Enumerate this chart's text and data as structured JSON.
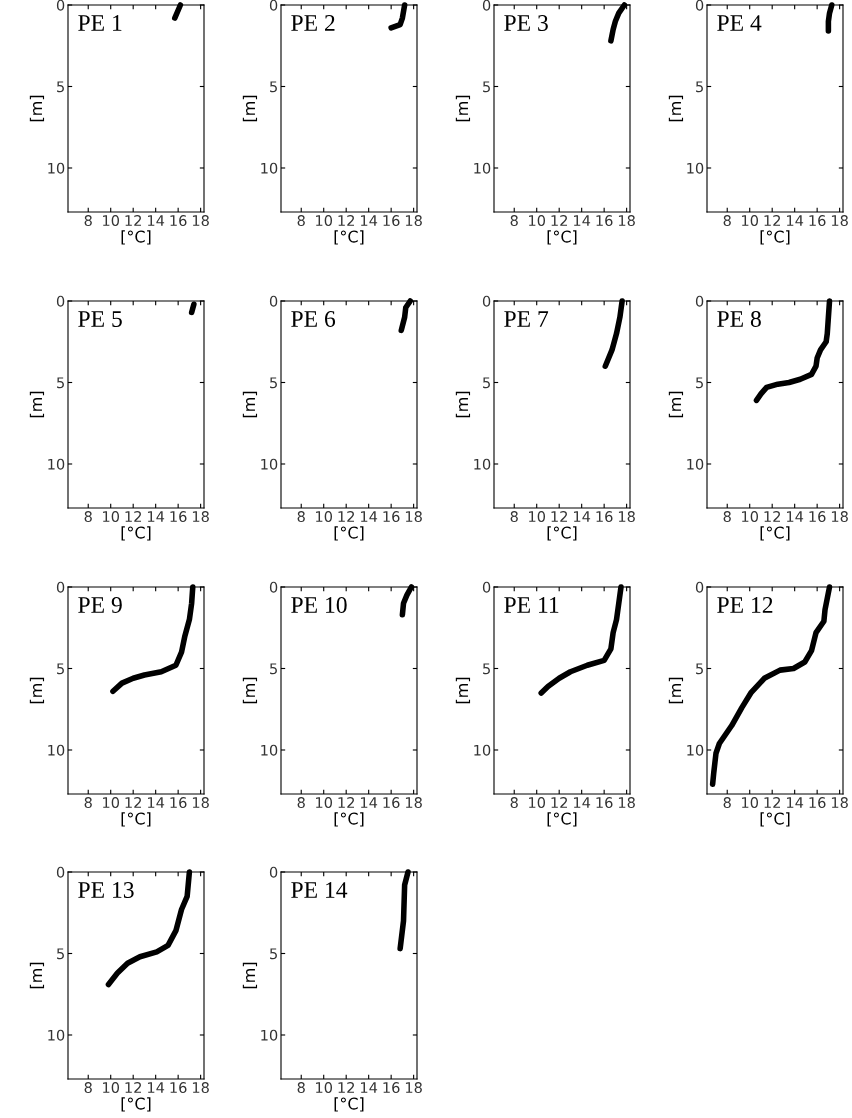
{
  "chart_data": [
    {
      "type": "line",
      "title": "PE 1",
      "xlabel": "[°C]",
      "ylabel": "[m]",
      "xlim": [
        6.2,
        18.3
      ],
      "ylim": [
        12.7,
        0
      ],
      "xticks": [
        8,
        10,
        12,
        14,
        16,
        18
      ],
      "yticks": [
        0,
        5,
        10
      ],
      "grid": false,
      "legend": false,
      "line_style": "solid",
      "series": [
        {
          "color": "#000000",
          "x": [
            16.2,
            15.7
          ],
          "values": [
            0,
            0.8
          ]
        }
      ]
    },
    {
      "type": "line",
      "title": "PE 2",
      "xlabel": "[°C]",
      "ylabel": "[m]",
      "xlim": [
        6.2,
        18.3
      ],
      "ylim": [
        12.7,
        0
      ],
      "xticks": [
        8,
        10,
        12,
        14,
        16,
        18
      ],
      "yticks": [
        0,
        5,
        10
      ],
      "grid": false,
      "legend": false,
      "line_style": "solid",
      "series": [
        {
          "color": "#000000",
          "x": [
            17.2,
            17.0,
            16.8,
            16.0
          ],
          "values": [
            0,
            0.8,
            1.2,
            1.4
          ]
        }
      ]
    },
    {
      "type": "line",
      "title": "PE 3",
      "xlabel": "[°C]",
      "ylabel": "[m]",
      "xlim": [
        6.2,
        18.3
      ],
      "ylim": [
        12.7,
        0
      ],
      "xticks": [
        8,
        10,
        12,
        14,
        16,
        18
      ],
      "yticks": [
        0,
        5,
        10
      ],
      "grid": false,
      "legend": false,
      "line_style": "solid",
      "series": [
        {
          "color": "#000000",
          "x": [
            17.8,
            17.3,
            17.0,
            16.8,
            16.6
          ],
          "values": [
            0,
            0.5,
            1.0,
            1.5,
            2.2
          ]
        }
      ]
    },
    {
      "type": "line",
      "title": "PE 4",
      "xlabel": "[°C]",
      "ylabel": "[m]",
      "xlim": [
        6.2,
        18.3
      ],
      "ylim": [
        12.7,
        0
      ],
      "xticks": [
        8,
        10,
        12,
        14,
        16,
        18
      ],
      "yticks": [
        0,
        5,
        10
      ],
      "grid": false,
      "legend": false,
      "line_style": "solid",
      "series": [
        {
          "color": "#000000",
          "x": [
            17.3,
            17.1,
            17.0,
            17.0
          ],
          "values": [
            0,
            0.5,
            1.0,
            1.6
          ]
        }
      ]
    },
    {
      "type": "line",
      "title": "PE 5",
      "xlabel": "[°C]",
      "ylabel": "[m]",
      "xlim": [
        6.2,
        18.3
      ],
      "ylim": [
        12.7,
        0
      ],
      "xticks": [
        8,
        10,
        12,
        14,
        16,
        18
      ],
      "yticks": [
        0,
        5,
        10
      ],
      "grid": false,
      "legend": false,
      "line_style": "solid",
      "series": [
        {
          "color": "#000000",
          "x": [
            17.4,
            17.2
          ],
          "values": [
            0.2,
            0.7
          ]
        }
      ]
    },
    {
      "type": "line",
      "title": "PE 6",
      "xlabel": "[°C]",
      "ylabel": "[m]",
      "xlim": [
        6.2,
        18.3
      ],
      "ylim": [
        12.7,
        0
      ],
      "xticks": [
        8,
        10,
        12,
        14,
        16,
        18
      ],
      "yticks": [
        0,
        5,
        10
      ],
      "grid": false,
      "legend": false,
      "line_style": "solid",
      "series": [
        {
          "color": "#000000",
          "x": [
            17.7,
            17.3,
            17.2,
            16.9
          ],
          "values": [
            0,
            0.4,
            1.0,
            1.8
          ]
        }
      ]
    },
    {
      "type": "line",
      "title": "PE 7",
      "xlabel": "[°C]",
      "ylabel": "[m]",
      "xlim": [
        6.2,
        18.3
      ],
      "ylim": [
        12.7,
        0
      ],
      "xticks": [
        8,
        10,
        12,
        14,
        16,
        18
      ],
      "yticks": [
        0,
        5,
        10
      ],
      "grid": false,
      "legend": false,
      "line_style": "solid",
      "series": [
        {
          "color": "#000000",
          "x": [
            17.6,
            17.4,
            17.1,
            16.7,
            16.1
          ],
          "values": [
            0,
            1,
            2,
            3,
            4
          ]
        }
      ]
    },
    {
      "type": "line",
      "title": "PE 8",
      "xlabel": "[°C]",
      "ylabel": "[m]",
      "xlim": [
        6.2,
        18.3
      ],
      "ylim": [
        12.7,
        0
      ],
      "xticks": [
        8,
        10,
        12,
        14,
        16,
        18
      ],
      "yticks": [
        0,
        5,
        10
      ],
      "grid": false,
      "legend": false,
      "line_style": "solid",
      "series": [
        {
          "color": "#000000",
          "x": [
            17.1,
            17.0,
            16.9,
            16.8,
            16.3,
            16.0,
            15.9,
            15.5,
            14.5,
            13.5,
            12.5,
            11.5,
            11.0,
            10.6
          ],
          "values": [
            0,
            1,
            2,
            2.5,
            3,
            3.5,
            4,
            4.5,
            4.8,
            5.0,
            5.1,
            5.3,
            5.7,
            6.1
          ]
        }
      ]
    },
    {
      "type": "line",
      "title": "PE 9",
      "xlabel": "[°C]",
      "ylabel": "[m]",
      "xlim": [
        6.2,
        18.3
      ],
      "ylim": [
        12.7,
        0
      ],
      "xticks": [
        8,
        10,
        12,
        14,
        16,
        18
      ],
      "yticks": [
        0,
        5,
        10
      ],
      "grid": false,
      "legend": false,
      "line_style": "solid",
      "series": [
        {
          "color": "#000000",
          "x": [
            17.3,
            17.2,
            17.0,
            16.6,
            16.3,
            15.8,
            14.5,
            13,
            12,
            11,
            10.2
          ],
          "values": [
            0,
            1,
            2,
            3,
            4,
            4.8,
            5.2,
            5.4,
            5.6,
            5.9,
            6.4
          ]
        }
      ]
    },
    {
      "type": "line",
      "title": "PE 10",
      "xlabel": "[°C]",
      "ylabel": "[m]",
      "xlim": [
        6.2,
        18.3
      ],
      "ylim": [
        12.7,
        0
      ],
      "xticks": [
        8,
        10,
        12,
        14,
        16,
        18
      ],
      "yticks": [
        0,
        5,
        10
      ],
      "grid": false,
      "legend": false,
      "line_style": "solid",
      "series": [
        {
          "color": "#000000",
          "x": [
            17.8,
            17.4,
            17.1,
            17.0
          ],
          "values": [
            0,
            0.5,
            1.0,
            1.7
          ]
        }
      ]
    },
    {
      "type": "line",
      "title": "PE 11",
      "xlabel": "[°C]",
      "ylabel": "[m]",
      "xlim": [
        6.2,
        18.3
      ],
      "ylim": [
        12.7,
        0
      ],
      "xticks": [
        8,
        10,
        12,
        14,
        16,
        18
      ],
      "yticks": [
        0,
        5,
        10
      ],
      "grid": false,
      "legend": false,
      "line_style": "solid",
      "series": [
        {
          "color": "#000000",
          "x": [
            17.5,
            17.3,
            17.1,
            16.8,
            16.6,
            16.0,
            14.5,
            13,
            12,
            11,
            10.4
          ],
          "values": [
            0,
            1,
            2,
            2.8,
            3.8,
            4.5,
            4.8,
            5.2,
            5.6,
            6.1,
            6.5
          ]
        }
      ]
    },
    {
      "type": "line",
      "title": "PE 12",
      "xlabel": "[°C]",
      "ylabel": "[m]",
      "xlim": [
        6.2,
        18.3
      ],
      "ylim": [
        12.7,
        0
      ],
      "xticks": [
        8,
        10,
        12,
        14,
        16,
        18
      ],
      "yticks": [
        0,
        5,
        10
      ],
      "grid": false,
      "legend": false,
      "line_style": "solid",
      "series": [
        {
          "color": "#000000",
          "x": [
            17.1,
            16.7,
            16.6,
            15.9,
            15.5,
            14.9,
            13.9,
            12.7,
            11.3,
            10.1,
            9.3,
            8.4,
            7.3,
            7.0,
            6.8,
            6.7
          ],
          "values": [
            0,
            1.4,
            2.1,
            2.8,
            3.9,
            4.6,
            5.0,
            5.1,
            5.6,
            6.5,
            7.4,
            8.5,
            9.6,
            10.2,
            11.4,
            12.1
          ]
        }
      ]
    },
    {
      "type": "line",
      "title": "PE 13",
      "xlabel": "[°C]",
      "ylabel": "[m]",
      "xlim": [
        6.2,
        18.3
      ],
      "ylim": [
        12.7,
        0
      ],
      "xticks": [
        8,
        10,
        12,
        14,
        16,
        18
      ],
      "yticks": [
        0,
        5,
        10
      ],
      "grid": false,
      "legend": false,
      "line_style": "solid",
      "series": [
        {
          "color": "#000000",
          "x": [
            17.0,
            16.8,
            16.3,
            15.8,
            15.1,
            14.1,
            12.6,
            11.5,
            10.6,
            9.8
          ],
          "values": [
            0,
            1.5,
            2.3,
            3.6,
            4.5,
            4.9,
            5.2,
            5.6,
            6.2,
            6.9
          ]
        }
      ]
    },
    {
      "type": "line",
      "title": "PE 14",
      "xlabel": "[°C]",
      "ylabel": "[m]",
      "xlim": [
        6.2,
        18.3
      ],
      "ylim": [
        12.7,
        0
      ],
      "xticks": [
        8,
        10,
        12,
        14,
        16,
        18
      ],
      "yticks": [
        0,
        5,
        10
      ],
      "grid": false,
      "legend": false,
      "line_style": "solid",
      "series": [
        {
          "color": "#000000",
          "x": [
            17.5,
            17.2,
            17.1,
            16.8
          ],
          "values": [
            0,
            0.8,
            3.0,
            4.7
          ]
        }
      ]
    }
  ]
}
